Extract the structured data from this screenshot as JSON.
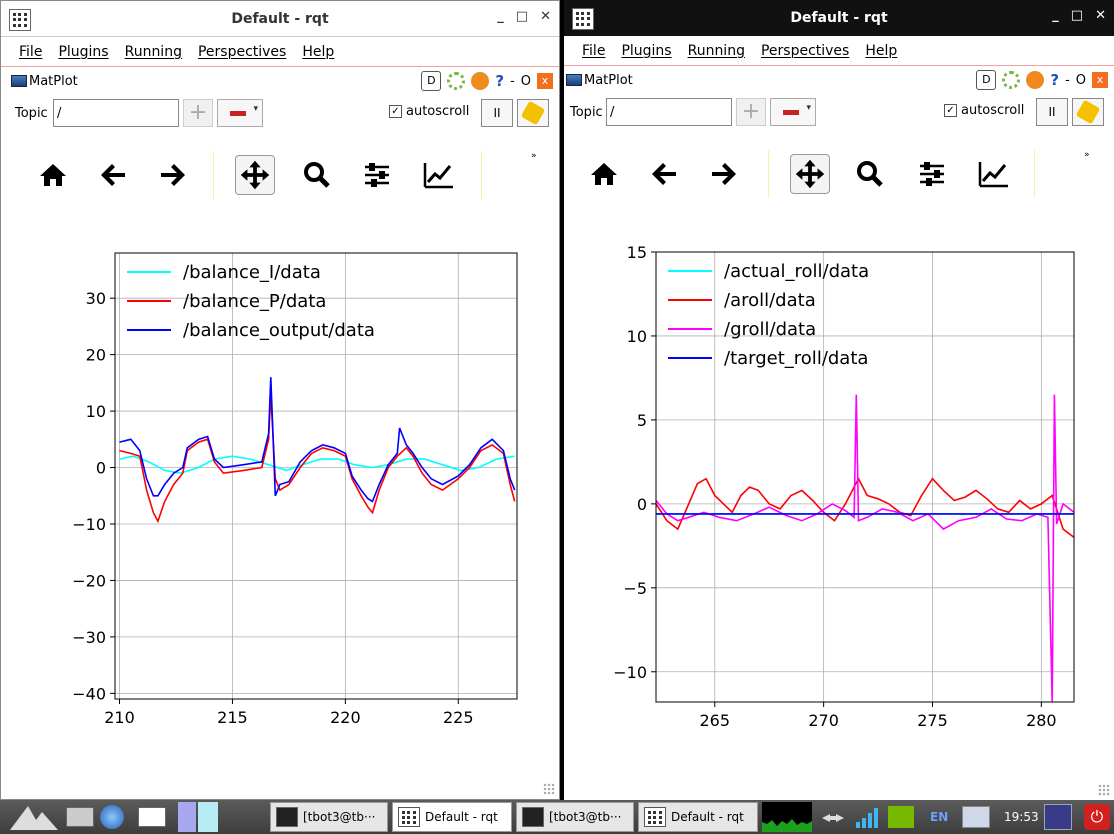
{
  "windows": [
    {
      "title": "Default - rqt",
      "menu": [
        "File",
        "Plugins",
        "Running",
        "Perspectives",
        "Help"
      ],
      "plugin_title": "MatPlot",
      "plugin_buttons": {
        "d": "D",
        "help": "?",
        "dash": "-",
        "o": "O",
        "close": "x"
      },
      "topic_label": "Topic",
      "topic_value": "/",
      "autoscroll_label": "autoscroll",
      "autoscroll_checked": "✓",
      "pause_label": "II",
      "more_label": "»",
      "chart_data": {
        "type": "line",
        "xlim": [
          209.8,
          227.6
        ],
        "ylim": [
          -41,
          38
        ],
        "xticks": [
          210,
          215,
          220,
          225
        ],
        "yticks": [
          -40,
          -30,
          -20,
          -10,
          0,
          10,
          20,
          30
        ],
        "xtick_labels": [
          "210",
          "215",
          "220",
          "225"
        ],
        "ytick_labels": [
          "−40",
          "−30",
          "−20",
          "−10",
          "0",
          "10",
          "20",
          "30"
        ],
        "grid": true,
        "legend_position": "top-left",
        "series": [
          {
            "name": "/balance_I/data",
            "color": "#00ffff",
            "x": [
              210,
              210.6,
              211.3,
              212.0,
              212.7,
              213.5,
              214.2,
              215.0,
              215.8,
              216.6,
              217.4,
              218.1,
              218.9,
              219.7,
              220.4,
              221.2,
              221.9,
              222.7,
              223.5,
              224.3,
              225.1,
              225.9,
              226.7,
              227.5
            ],
            "y": [
              1.5,
              2,
              1,
              -0.5,
              -1,
              0,
              1.5,
              2,
              1.5,
              0.5,
              -0.5,
              0.5,
              1.5,
              1.5,
              0.5,
              0,
              0.5,
              1.5,
              1.5,
              0.5,
              -0.5,
              0,
              1.5,
              2
            ]
          },
          {
            "name": "/balance_P/data",
            "color": "#ff0000",
            "x": [
              210,
              210.5,
              210.9,
              211.2,
              211.5,
              211.7,
              212.0,
              212.4,
              212.8,
              213.0,
              213.5,
              213.9,
              214.2,
              214.6,
              215.5,
              216.3,
              216.6,
              216.7,
              216.9,
              217.1,
              217.5,
              218.0,
              218.5,
              219.0,
              219.5,
              220.0,
              220.3,
              220.7,
              221.0,
              221.2,
              221.5,
              221.9,
              222.3,
              222.7,
              223.0,
              223.4,
              223.8,
              224.3,
              225.0,
              225.5,
              226.0,
              226.5,
              227.0,
              227.3,
              227.5
            ],
            "y": [
              3,
              2.5,
              2,
              -4,
              -8,
              -9.5,
              -6,
              -3,
              -1,
              3,
              4.5,
              5,
              1,
              -1,
              -0.5,
              0,
              5,
              13,
              -2,
              -4,
              -3,
              0,
              2.5,
              3.5,
              3,
              2,
              -2,
              -5,
              -7,
              -8,
              -4,
              0,
              2,
              3.5,
              2,
              -1,
              -3,
              -4,
              -2,
              0,
              3,
              4,
              2.5,
              -3,
              -6
            ]
          },
          {
            "name": "/balance_output/data",
            "color": "#0000ff",
            "x": [
              210,
              210.5,
              210.9,
              211.2,
              211.5,
              211.7,
              212.0,
              212.4,
              212.8,
              213.0,
              213.5,
              213.9,
              214.2,
              214.6,
              215.5,
              216.3,
              216.6,
              216.7,
              216.9,
              217.1,
              217.5,
              218.0,
              218.5,
              219.0,
              219.5,
              220.0,
              220.3,
              220.7,
              221.0,
              221.2,
              221.5,
              221.9,
              222.3,
              222.4,
              222.7,
              223.0,
              223.4,
              223.8,
              224.3,
              225.0,
              225.5,
              226.0,
              226.5,
              227.0,
              227.3,
              227.5
            ],
            "y": [
              4.5,
              5,
              3,
              -2,
              -5,
              -5,
              -3,
              -1,
              0,
              3.5,
              5,
              5.5,
              1.5,
              0,
              0.5,
              1,
              6,
              16,
              -5,
              -3,
              -2.5,
              1,
              3,
              4,
              3.5,
              2.5,
              -1.5,
              -4,
              -5.5,
              -6,
              -3,
              0.5,
              2.5,
              7,
              4,
              2.5,
              0,
              -2,
              -3,
              -1.5,
              0.5,
              3.5,
              5,
              3,
              -2,
              -4
            ]
          }
        ]
      }
    },
    {
      "title": "Default - rqt",
      "menu": [
        "File",
        "Plugins",
        "Running",
        "Perspectives",
        "Help"
      ],
      "plugin_title": "MatPlot",
      "plugin_buttons": {
        "d": "D",
        "help": "?",
        "dash": "-",
        "o": "O",
        "close": "x"
      },
      "topic_label": "Topic",
      "topic_value": "/",
      "autoscroll_label": "autoscroll",
      "autoscroll_checked": "✓",
      "pause_label": "II",
      "more_label": "»",
      "chart_data": {
        "type": "line",
        "xlim": [
          262.3,
          281.5
        ],
        "ylim": [
          -11.8,
          15
        ],
        "xticks": [
          265,
          270,
          275,
          280
        ],
        "yticks": [
          -10,
          -5,
          0,
          5,
          10,
          15
        ],
        "xtick_labels": [
          "265",
          "270",
          "275",
          "280"
        ],
        "ytick_labels": [
          "−10",
          "−5",
          "0",
          "5",
          "10",
          "15"
        ],
        "grid": true,
        "legend_position": "top-left",
        "series": [
          {
            "name": "/actual_roll/data",
            "color": "#00ffff",
            "x": [
              262.3,
              281.5
            ],
            "y": [
              -0.6,
              -0.6
            ]
          },
          {
            "name": "/aroll/data",
            "color": "#ff0000",
            "x": [
              262.3,
              262.8,
              263.3,
              263.8,
              264.2,
              264.6,
              265.0,
              265.4,
              265.8,
              266.2,
              266.6,
              267.0,
              267.5,
              268.0,
              268.5,
              269.0,
              269.5,
              270.0,
              270.5,
              271.0,
              271.4,
              271.6,
              272.0,
              272.5,
              273.0,
              273.5,
              274.0,
              274.5,
              275.0,
              275.5,
              276.0,
              276.5,
              277.0,
              277.5,
              278.0,
              278.5,
              279.0,
              279.5,
              280.0,
              280.5,
              281.0,
              281.5
            ],
            "y": [
              0,
              -1,
              -1.5,
              0,
              1.2,
              1.5,
              0.5,
              0,
              -0.5,
              0.5,
              1,
              0.8,
              0,
              -0.3,
              0.5,
              0.8,
              0.2,
              -0.5,
              -1,
              0,
              1,
              1.5,
              0.5,
              0.3,
              0,
              -0.5,
              -0.7,
              0.5,
              1.5,
              0.8,
              0.2,
              0.4,
              0.8,
              0.3,
              -0.3,
              -0.5,
              0.2,
              -0.3,
              0,
              0.5,
              -1.5,
              -2
            ]
          },
          {
            "name": "/groll/data",
            "color": "#ff00ff",
            "x": [
              262.3,
              262.8,
              263.3,
              263.8,
              264.5,
              265.2,
              266.0,
              266.8,
              267.5,
              268.3,
              269.0,
              269.7,
              270.4,
              271.0,
              271.4,
              271.5,
              271.6,
              272.0,
              272.7,
              273.4,
              274.1,
              274.8,
              275.5,
              276.2,
              277.0,
              277.7,
              278.4,
              279.1,
              279.8,
              280.3,
              280.5,
              280.6,
              280.7,
              281.0,
              281.5
            ],
            "y": [
              0.2,
              -0.6,
              -1,
              -0.8,
              -0.5,
              -0.8,
              -1,
              -0.6,
              -0.2,
              -0.7,
              -1,
              -0.6,
              0,
              -0.4,
              -0.8,
              6.5,
              -1,
              -0.8,
              -0.3,
              -0.5,
              -1,
              -0.6,
              -1.5,
              -1,
              -0.8,
              -0.3,
              -0.9,
              -1,
              -0.6,
              -0.8,
              -11.8,
              6.5,
              -1.2,
              0,
              -0.5
            ]
          },
          {
            "name": "/target_roll/data",
            "color": "#0000ff",
            "x": [
              262.3,
              281.5
            ],
            "y": [
              -0.6,
              -0.6
            ]
          }
        ]
      }
    }
  ],
  "taskbar": {
    "items": [
      {
        "label": "[tbot3@tb···"
      },
      {
        "label": "Default - rqt"
      },
      {
        "label": "[tbot3@tb···"
      },
      {
        "label": "Default - rqt"
      }
    ],
    "lang": "EN",
    "clock": "19:53"
  }
}
